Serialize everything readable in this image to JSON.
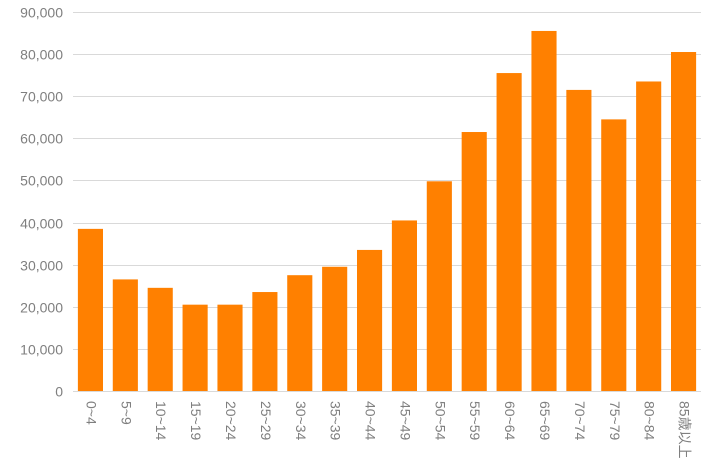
{
  "chart_data": {
    "type": "bar",
    "title": "",
    "xlabel": "",
    "ylabel": "",
    "categories": [
      "0~4",
      "5~9",
      "10~14",
      "15~19",
      "20~24",
      "25~29",
      "30~34",
      "35~39",
      "40~44",
      "45~49",
      "50~54",
      "55~59",
      "60~64",
      "65~69",
      "70~74",
      "75~79",
      "80~84",
      "85歳以上"
    ],
    "values": [
      38500,
      26500,
      24500,
      20500,
      20500,
      23500,
      27500,
      29500,
      33500,
      40500,
      49800,
      61500,
      75500,
      85500,
      71500,
      64500,
      73500,
      80500
    ],
    "ylim": [
      0,
      90000
    ],
    "yticks": [
      0,
      10000,
      20000,
      30000,
      40000,
      50000,
      60000,
      70000,
      80000,
      90000
    ],
    "ytick_labels": [
      "0",
      "10,000",
      "20,000",
      "30,000",
      "40,000",
      "50,000",
      "60,000",
      "70,000",
      "80,000",
      "90,000"
    ],
    "grid": true,
    "legend": "none",
    "colors": {
      "bar": "#ff8000",
      "grid": "#d9d9d9",
      "tick_text": "#7f7f7f"
    }
  }
}
